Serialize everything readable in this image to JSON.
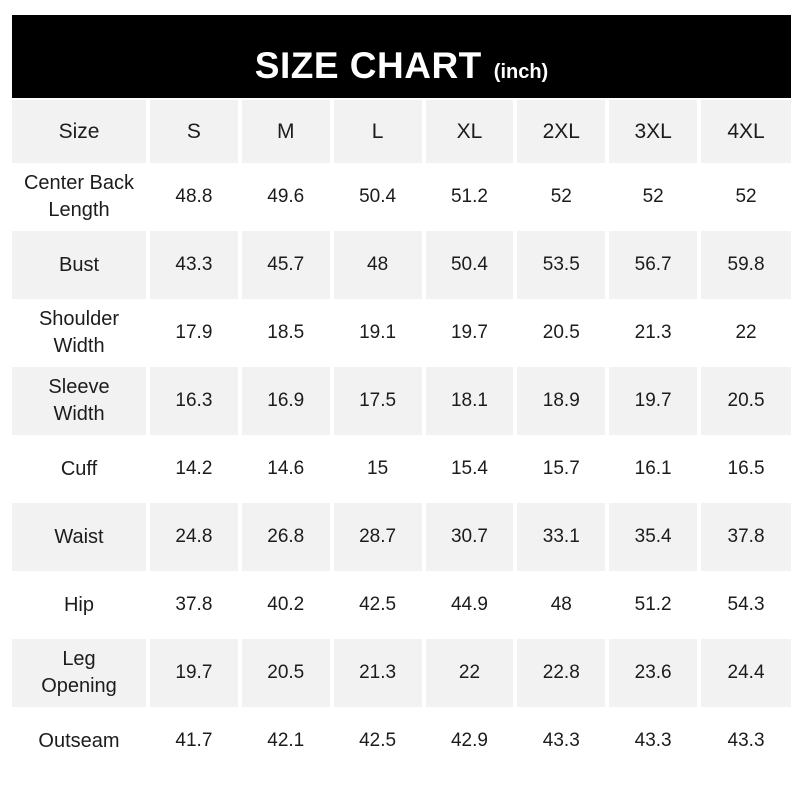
{
  "header": {
    "title": "SIZE CHART",
    "unit": "(inch)",
    "bg_color": "#000000",
    "text_color": "#ffffff"
  },
  "table": {
    "stripe_color": "#f2f2f2",
    "columns": [
      "Size",
      "S",
      "M",
      "L",
      "XL",
      "2XL",
      "3XL",
      "4XL"
    ],
    "rows": [
      {
        "label": "Center Back\nLength",
        "values": [
          "48.8",
          "49.6",
          "50.4",
          "51.2",
          "52",
          "52",
          "52"
        ]
      },
      {
        "label": "Bust",
        "values": [
          "43.3",
          "45.7",
          "48",
          "50.4",
          "53.5",
          "56.7",
          "59.8"
        ]
      },
      {
        "label": "Shoulder\nWidth",
        "values": [
          "17.9",
          "18.5",
          "19.1",
          "19.7",
          "20.5",
          "21.3",
          "22"
        ]
      },
      {
        "label": "Sleeve\nWidth",
        "values": [
          "16.3",
          "16.9",
          "17.5",
          "18.1",
          "18.9",
          "19.7",
          "20.5"
        ]
      },
      {
        "label": "Cuff",
        "values": [
          "14.2",
          "14.6",
          "15",
          "15.4",
          "15.7",
          "16.1",
          "16.5"
        ]
      },
      {
        "label": "Waist",
        "values": [
          "24.8",
          "26.8",
          "28.7",
          "30.7",
          "33.1",
          "35.4",
          "37.8"
        ]
      },
      {
        "label": "Hip",
        "values": [
          "37.8",
          "40.2",
          "42.5",
          "44.9",
          "48",
          "51.2",
          "54.3"
        ]
      },
      {
        "label": "Leg\nOpening",
        "values": [
          "19.7",
          "20.5",
          "21.3",
          "22",
          "22.8",
          "23.6",
          "24.4"
        ]
      },
      {
        "label": "Outseam",
        "values": [
          "41.7",
          "42.1",
          "42.5",
          "42.9",
          "43.3",
          "43.3",
          "43.3"
        ]
      }
    ]
  }
}
